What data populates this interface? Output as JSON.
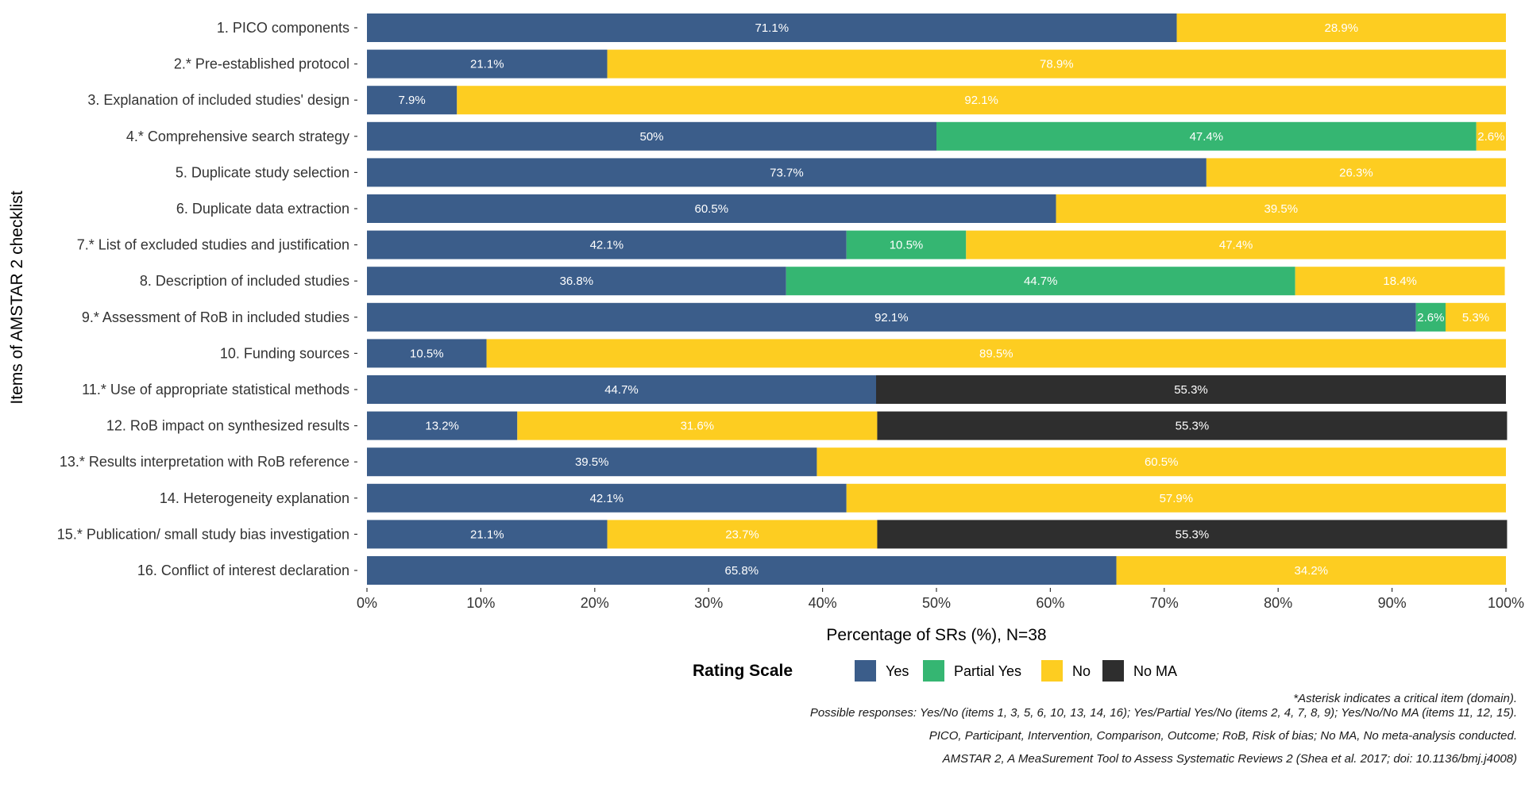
{
  "chart_data": {
    "type": "bar",
    "orientation": "horizontal",
    "stacked": true,
    "ylabel": "Items of AMSTAR 2 checklist",
    "xlabel": "Percentage of SRs (%), N=38",
    "xlim": [
      0,
      100
    ],
    "x_ticks": [
      "0%",
      "10%",
      "20%",
      "30%",
      "40%",
      "50%",
      "60%",
      "70%",
      "80%",
      "90%",
      "100%"
    ],
    "grid": false,
    "legend": {
      "title": "Rating Scale",
      "position": "bottom",
      "entries": [
        "Yes",
        "Partial Yes",
        "No",
        "No MA"
      ]
    },
    "colors": {
      "Yes": "#3b5d8a",
      "Partial Yes": "#35b672",
      "No": "#fdcd21",
      "No MA": "#2e2e2e"
    },
    "categories": [
      "1. PICO components",
      "2.* Pre-established protocol",
      "3. Explanation of included studies' design",
      "4.* Comprehensive search strategy",
      "5. Duplicate study selection",
      "6. Duplicate data extraction",
      "7.* List of excluded studies and justification",
      "8. Description of included studies",
      "9.* Assessment of RoB in included studies",
      "10. Funding sources",
      "11.* Use of appropriate statistical methods",
      "12. RoB impact on synthesized results",
      "13.* Results interpretation with RoB reference",
      "14. Heterogeneity explanation",
      "15.* Publication/ small study bias investigation",
      "16. Conflict of interest declaration"
    ],
    "series": [
      {
        "name": "Yes",
        "values": [
          71.1,
          21.1,
          7.9,
          50,
          73.7,
          60.5,
          42.1,
          36.8,
          92.1,
          10.5,
          44.7,
          13.2,
          39.5,
          42.1,
          21.1,
          65.8
        ],
        "labels": [
          "71.1%",
          "21.1%",
          "7.9%",
          "50%",
          "73.7%",
          "60.5%",
          "42.1%",
          "36.8%",
          "92.1%",
          "10.5%",
          "44.7%",
          "13.2%",
          "39.5%",
          "42.1%",
          "21.1%",
          "65.8%"
        ]
      },
      {
        "name": "Partial Yes",
        "values": [
          0,
          0,
          0,
          47.4,
          0,
          0,
          10.5,
          44.7,
          2.6,
          0,
          0,
          0,
          0,
          0,
          0,
          0
        ],
        "labels": [
          "",
          "",
          "",
          "47.4%",
          "",
          "",
          "10.5%",
          "44.7%",
          "2.6%",
          "",
          "",
          "",
          "",
          "",
          "",
          ""
        ]
      },
      {
        "name": "No",
        "values": [
          28.9,
          78.9,
          92.1,
          2.6,
          26.3,
          39.5,
          47.4,
          18.4,
          5.3,
          89.5,
          0,
          31.6,
          60.5,
          57.9,
          23.7,
          34.2
        ],
        "labels": [
          "28.9%",
          "78.9%",
          "92.1%",
          "2.6%",
          "26.3%",
          "39.5%",
          "47.4%",
          "18.4%",
          "5.3%",
          "89.5%",
          "",
          "31.6%",
          "60.5%",
          "57.9%",
          "23.7%",
          "34.2%"
        ]
      },
      {
        "name": "No MA",
        "values": [
          0,
          0,
          0,
          0,
          0,
          0,
          0,
          0,
          0,
          0,
          55.3,
          55.3,
          0,
          0,
          55.3,
          0
        ],
        "labels": [
          "",
          "",
          "",
          "",
          "",
          "",
          "",
          "",
          "",
          "",
          "55.3%",
          "55.3%",
          "",
          "",
          "55.3%",
          ""
        ]
      }
    ],
    "annotations": [
      "*Asterisk indicates a critical item (domain).",
      "Possible responses: Yes/No (items 1, 3, 5, 6, 10, 13, 14, 16); Yes/Partial Yes/No (items 2, 4, 7, 8, 9); Yes/No/No MA (items 11, 12, 15).",
      "PICO, Participant, Intervention, Comparison, Outcome; RoB, Risk of bias; No MA, No meta-analysis conducted.",
      "AMSTAR 2, A MeaSurement Tool to Assess Systematic Reviews 2 (Shea et al. 2017; doi: 10.1136/bmj.j4008)"
    ]
  }
}
